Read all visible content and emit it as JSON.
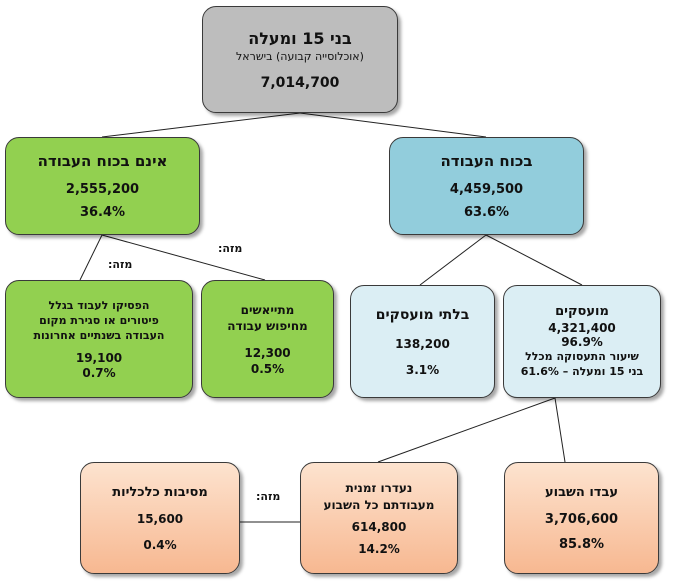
{
  "colors": {
    "gray": "#bdbdbd",
    "green": "#92d050",
    "blue": "#92cddc",
    "light_blue": "#dbeef4",
    "orange_top": "#fde3cf",
    "orange_bottom": "#f7b891"
  },
  "root": {
    "title": "בני 15 ומעלה",
    "subtitle": "(אוכלוסייה קבועה) בישראל",
    "value": "7,014,700"
  },
  "not_labor_force": {
    "title": "אינם בכוח העבודה",
    "value": "2,555,200",
    "percent": "36.4%"
  },
  "labor_force": {
    "title": "בכוח העבודה",
    "value": "4,459,500",
    "percent": "63.6%"
  },
  "quit_work": {
    "title": "הפסיקו לעבוד בגלל\nפיטורים או סגירת מקום\nהעבודה בשנתיים אחרונות",
    "value": "19,100",
    "percent": "0.7%"
  },
  "discouraged": {
    "title": "מתייאשים\nמחיפוש עבודה",
    "value": "12,300",
    "percent": "0.5%"
  },
  "unemployed": {
    "title": "בלתי מועסקים",
    "value": "138,200",
    "percent": "3.1%"
  },
  "employed": {
    "title": "מועסקים",
    "value": "4,321,400",
    "percent": "96.9%",
    "note": "שיעור התעסוקה מכלל\nבני 15 ומעלה – 61.6%"
  },
  "economic_reasons": {
    "title": "מסיבות כלכליות",
    "value": "15,600",
    "percent": "0.4%"
  },
  "temp_absent": {
    "title": "נעדרו זמנית\nמעבודתם כל השבוע",
    "value": "614,800",
    "percent": "14.2%"
  },
  "worked_week": {
    "title": "עבדו השבוע",
    "value": "3,706,600",
    "percent": "85.8%"
  },
  "labels": {
    "of_which_1": "מזה:",
    "of_which_2": "מזה:",
    "of_which_3": "מזה:"
  }
}
